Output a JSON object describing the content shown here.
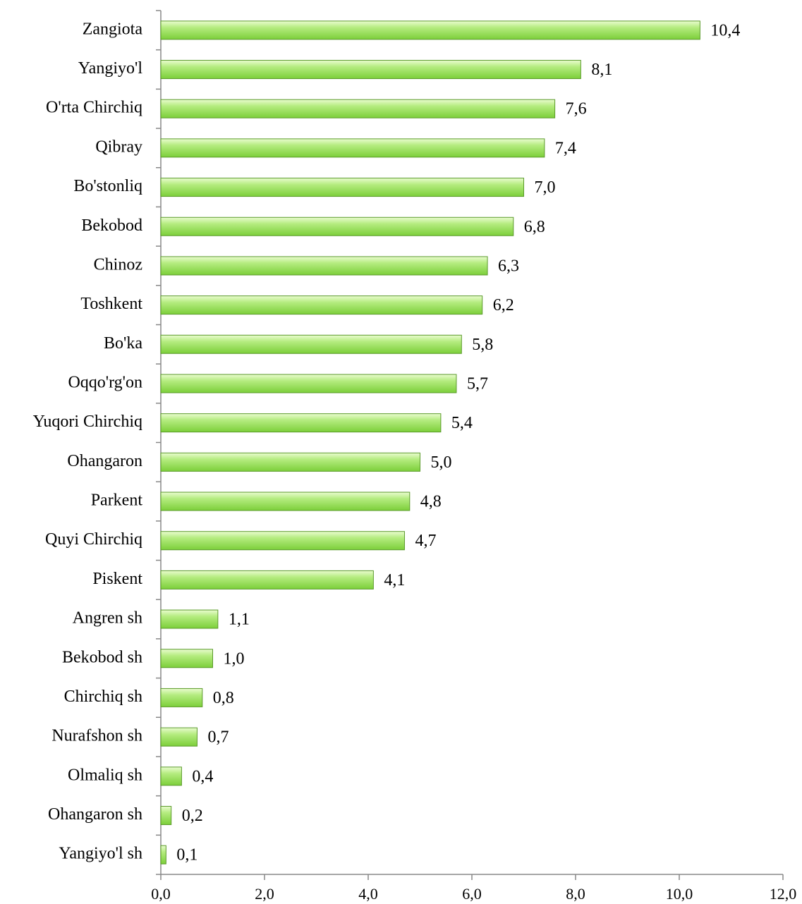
{
  "chart_data": {
    "type": "bar",
    "orientation": "horizontal",
    "categories": [
      "Zangiota",
      "Yangiyo'l",
      "O'rta Chirchiq",
      "Qibray",
      "Bo'stonliq",
      "Bekobod",
      "Chinoz",
      "Toshkent",
      "Bo'ka",
      "Oqqo'rg'on",
      "Yuqori Chirchiq",
      "Ohangaron",
      "Parkent",
      "Quyi Chirchiq",
      "Piskent",
      "Angren sh",
      "Bekobod sh",
      "Chirchiq sh",
      "Nurafshon sh",
      "Olmaliq sh",
      "Ohangaron sh",
      "Yangiyo'l sh"
    ],
    "values": [
      10.4,
      8.1,
      7.6,
      7.4,
      7.0,
      6.8,
      6.3,
      6.2,
      5.8,
      5.7,
      5.4,
      5.0,
      4.8,
      4.7,
      4.1,
      1.1,
      1.0,
      0.8,
      0.7,
      0.4,
      0.2,
      0.1
    ],
    "value_labels": [
      "10,4",
      "8,1",
      "7,6",
      "7,4",
      "7,0",
      "6,8",
      "6,3",
      "6,2",
      "5,8",
      "5,7",
      "5,4",
      "5,0",
      "4,8",
      "4,7",
      "4,1",
      "1,1",
      "1,0",
      "0,8",
      "0,7",
      "0,4",
      "0,2",
      "0,1"
    ],
    "color": "#8fdc4e",
    "xlim": [
      0,
      12
    ],
    "xticks": [
      {
        "value": 0,
        "label": "0,0"
      },
      {
        "value": 2,
        "label": "2,0"
      },
      {
        "value": 4,
        "label": "4,0"
      },
      {
        "value": 6,
        "label": "6,0"
      },
      {
        "value": 8,
        "label": "8,0"
      },
      {
        "value": 10,
        "label": "10,0"
      },
      {
        "value": 12,
        "label": "12,0"
      }
    ],
    "grid": false
  }
}
